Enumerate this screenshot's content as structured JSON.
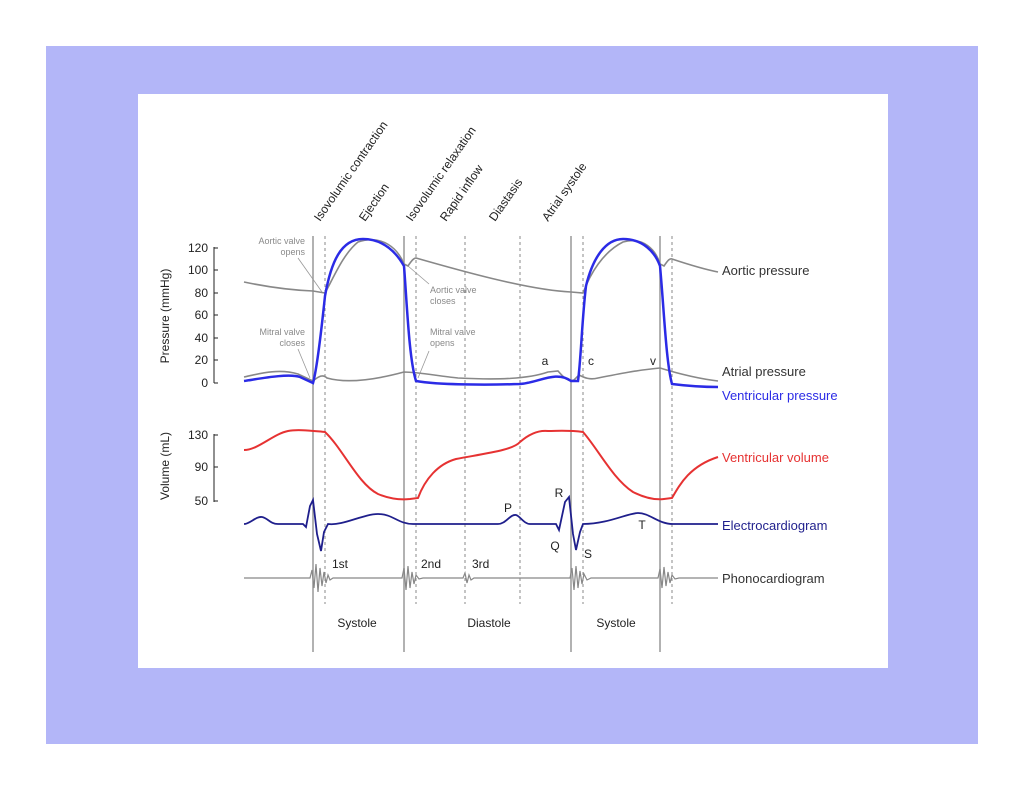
{
  "colors": {
    "background_frame": "#b3b6f8",
    "panel": "#ffffff",
    "aortic": "#888888",
    "atrial": "#888888",
    "ventricular_pressure": "#2b2be6",
    "ventricular_volume": "#e63232",
    "ecg": "#1f1f8c",
    "phonocardiogram": "#888888",
    "divider": "#999999"
  },
  "phases": [
    "Isovolumic contraction",
    "Ejection",
    "Isovolumic relaxation",
    "Rapid inflow",
    "Diastasis",
    "Atrial systole"
  ],
  "pressure_axis": {
    "title": "Pressure (mmHg)",
    "ticks": [
      "120",
      "100",
      "80",
      "60",
      "40",
      "20",
      "0"
    ]
  },
  "volume_axis": {
    "title": "Volume (mL)",
    "ticks": [
      "130",
      "90",
      "50"
    ]
  },
  "annotations": {
    "aortic_opens": [
      "Aortic valve",
      "opens"
    ],
    "mitral_closes": [
      "Mitral valve",
      "closes"
    ],
    "aortic_closes": [
      "Aortic valve",
      "closes"
    ],
    "mitral_opens": [
      "Mitral valve",
      "opens"
    ]
  },
  "waves": {
    "a": "a",
    "c": "c",
    "v": "v",
    "P": "P",
    "Q": "Q",
    "R": "R",
    "S": "S",
    "T": "T"
  },
  "trace_labels": {
    "aortic": "Aortic pressure",
    "atrial": "Atrial pressure",
    "ventricular_pressure": "Ventricular pressure",
    "ventricular_volume": "Ventricular volume",
    "ecg": "Electrocardiogram",
    "phono": "Phonocardiogram"
  },
  "heart_sounds": [
    "1st",
    "2nd",
    "3rd"
  ],
  "periods": [
    "Systole",
    "Diastole",
    "Systole"
  ]
}
